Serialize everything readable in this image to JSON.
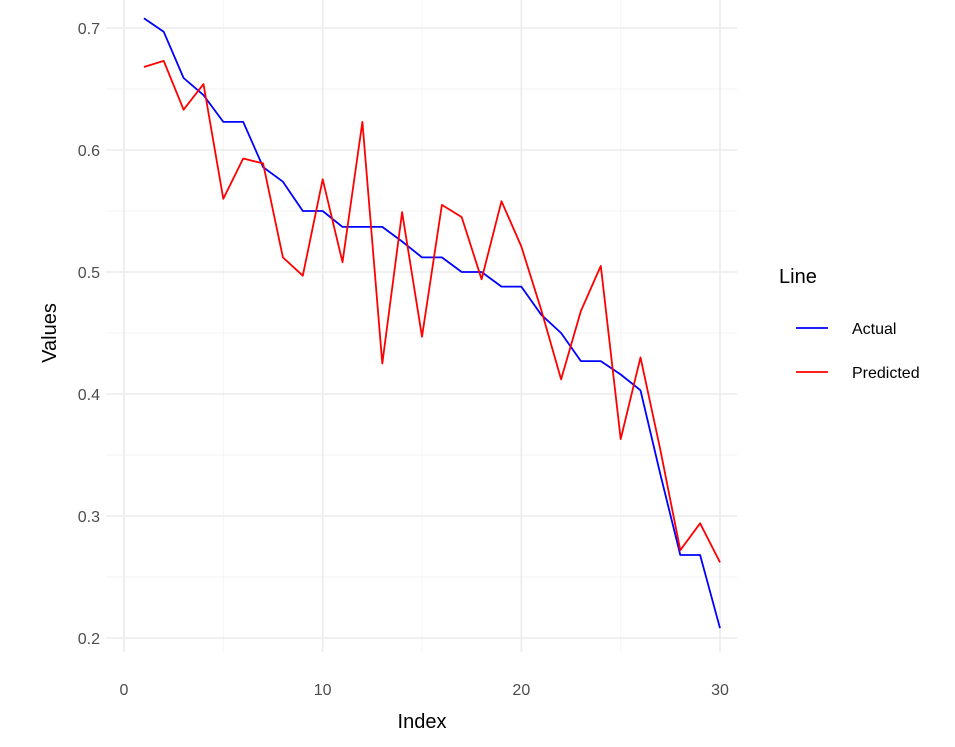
{
  "chart_data": {
    "type": "line",
    "title": "",
    "xlabel": "Index",
    "ylabel": "Values",
    "xlim": [
      0,
      31
    ],
    "ylim": [
      0.2,
      0.71
    ],
    "xticks": [
      0,
      10,
      20,
      30
    ],
    "yticks": [
      0.2,
      0.3,
      0.4,
      0.5,
      0.6,
      0.7
    ],
    "grid": true,
    "legend": {
      "title": "Line",
      "position": "right"
    },
    "x": [
      1,
      2,
      3,
      4,
      5,
      6,
      7,
      8,
      9,
      10,
      11,
      12,
      13,
      14,
      15,
      16,
      17,
      18,
      19,
      20,
      21,
      22,
      23,
      24,
      25,
      26,
      27,
      28,
      29,
      30
    ],
    "series": [
      {
        "name": "Actual",
        "color": "#0000ff",
        "values": [
          0.708,
          0.697,
          0.659,
          0.645,
          0.623,
          0.623,
          0.586,
          0.574,
          0.55,
          0.55,
          0.537,
          0.537,
          0.537,
          0.525,
          0.512,
          0.512,
          0.5,
          0.5,
          0.488,
          0.488,
          0.465,
          0.45,
          0.427,
          0.427,
          0.416,
          0.403,
          0.334,
          0.268,
          0.268,
          0.208
        ]
      },
      {
        "name": "Predicted",
        "color": "#ff0000",
        "values": [
          0.668,
          0.673,
          0.633,
          0.654,
          0.56,
          0.593,
          0.589,
          0.512,
          0.497,
          0.576,
          0.508,
          0.623,
          0.425,
          0.549,
          0.447,
          0.555,
          0.545,
          0.494,
          0.558,
          0.521,
          0.469,
          0.412,
          0.468,
          0.505,
          0.363,
          0.43,
          0.354,
          0.272,
          0.294,
          0.262
        ]
      }
    ]
  }
}
